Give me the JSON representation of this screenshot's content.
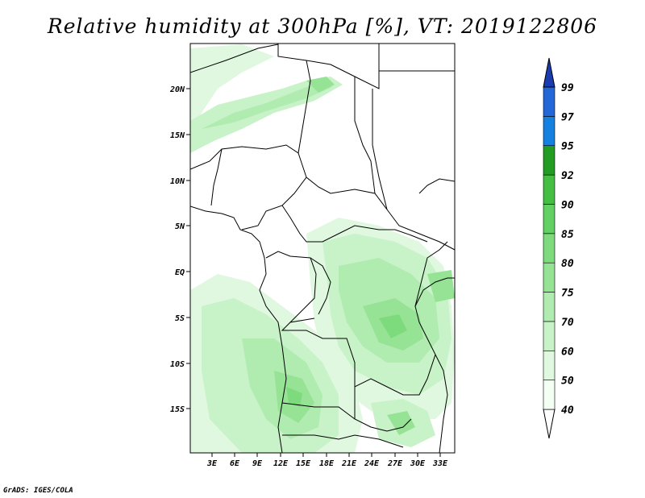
{
  "title": "Relative humidity at 300hPa [%], VT: 2019122806",
  "credit": "GrADS: IGES/COLA",
  "map": {
    "lon_labels": [
      "3E",
      "6E",
      "9E",
      "12E",
      "15E",
      "18E",
      "21E",
      "24E",
      "27E",
      "30E",
      "33E"
    ],
    "lat_labels": [
      "20N",
      "15N",
      "10N",
      "5N",
      "EQ",
      "5S",
      "10S",
      "15S"
    ]
  },
  "colorbar": {
    "levels": [
      "40",
      "50",
      "60",
      "70",
      "75",
      "80",
      "85",
      "90",
      "92",
      "95",
      "97",
      "99"
    ],
    "colors": [
      "#f4fff4",
      "#dff8df",
      "#c8f2c8",
      "#b0ebb0",
      "#96e396",
      "#7ddb7d",
      "#62d062",
      "#44bf44",
      "#239c23",
      "#1480e0",
      "#2266d8",
      "#1e50c0",
      "#1a3cb0"
    ]
  }
}
